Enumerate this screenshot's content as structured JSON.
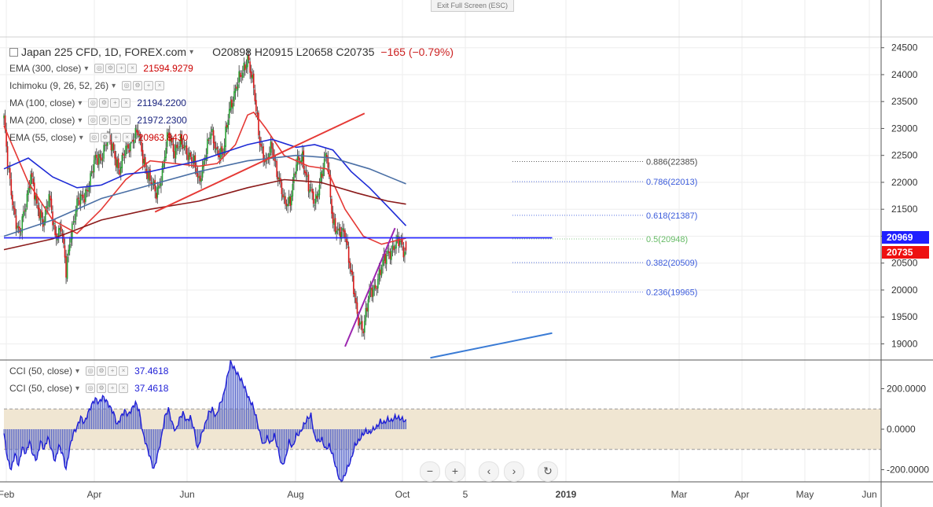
{
  "ui": {
    "exit_full_screen": "Exit Full Screen (ESC)",
    "symbol": "Japan 225 CFD, 1D, FOREX.com",
    "ohlc": "O20898  H20915  L20658  C20735",
    "change": "−165 (−0.79%)",
    "zoom_out_label": "−",
    "zoom_in_label": "+",
    "scroll_left_label": "‹",
    "scroll_right_label": "›",
    "reset_label": "↻",
    "indicators": [
      {
        "name": "EMA (300, close)",
        "value": "21594.9279",
        "color": "#cc0000"
      },
      {
        "name": "Ichimoku (9, 26, 52, 26)",
        "value": "",
        "color": "#888888"
      },
      {
        "name": "MA (100, close)",
        "value": "21194.2200",
        "color": "#1a237e"
      },
      {
        "name": "MA (200, close)",
        "value": "21972.2300",
        "color": "#1a237e"
      },
      {
        "name": "EMA (55, close)",
        "value": "20963.8430",
        "color": "#cc0000"
      }
    ],
    "cci_legends": [
      {
        "name": "CCI (50, close)",
        "value": "37.4618"
      },
      {
        "name": "CCI (50, close)",
        "value": "37.4618"
      }
    ],
    "last_price_tag": "20735",
    "line_price_tag": "20969"
  },
  "chart_data": [
    {
      "type": "candlestick",
      "symbol": "Japan 225 CFD, 1D, FOREX.com",
      "ohlc_last": {
        "open": 20898,
        "high": 20915,
        "low": 20658,
        "close": 20735
      },
      "ylim": [
        18700,
        24700
      ],
      "yticks": [
        19000,
        19500,
        20000,
        20500,
        21000,
        21500,
        22000,
        22500,
        23000,
        23500,
        24000,
        24500
      ],
      "xlabels": [
        "Feb",
        "Apr",
        "Jun",
        "Aug",
        "Oct",
        "5",
        "2019",
        "Mar",
        "Apr",
        "May",
        "Jun"
      ],
      "close_path": [
        [
          0,
          23200
        ],
        [
          3,
          22300
        ],
        [
          8,
          21500
        ],
        [
          13,
          21000
        ],
        [
          18,
          21600
        ],
        [
          22,
          22200
        ],
        [
          27,
          21500
        ],
        [
          32,
          21300
        ],
        [
          37,
          21700
        ],
        [
          42,
          21000
        ],
        [
          47,
          21200
        ],
        [
          51,
          20300
        ],
        [
          55,
          21100
        ],
        [
          60,
          21600
        ],
        [
          65,
          21700
        ],
        [
          70,
          22000
        ],
        [
          75,
          22400
        ],
        [
          80,
          22500
        ],
        [
          85,
          22800
        ],
        [
          90,
          22600
        ],
        [
          95,
          22200
        ],
        [
          100,
          22600
        ],
        [
          105,
          22800
        ],
        [
          110,
          22900
        ],
        [
          115,
          22400
        ],
        [
          120,
          22000
        ],
        [
          125,
          21800
        ],
        [
          130,
          22200
        ],
        [
          135,
          22900
        ],
        [
          140,
          22600
        ],
        [
          145,
          22700
        ],
        [
          150,
          22600
        ],
        [
          155,
          22400
        ],
        [
          160,
          22000
        ],
        [
          165,
          22500
        ],
        [
          170,
          22900
        ],
        [
          175,
          22600
        ],
        [
          180,
          22500
        ],
        [
          185,
          23400
        ],
        [
          190,
          23700
        ],
        [
          195,
          24000
        ],
        [
          200,
          24350
        ],
        [
          205,
          23700
        ],
        [
          210,
          22800
        ],
        [
          215,
          22300
        ],
        [
          220,
          22700
        ],
        [
          225,
          22100
        ],
        [
          230,
          21600
        ],
        [
          235,
          21700
        ],
        [
          240,
          22300
        ],
        [
          245,
          22500
        ],
        [
          250,
          21900
        ],
        [
          255,
          21600
        ],
        [
          260,
          22100
        ],
        [
          265,
          22500
        ],
        [
          270,
          21300
        ],
        [
          275,
          21000
        ],
        [
          280,
          21100
        ],
        [
          285,
          20300
        ],
        [
          290,
          19500
        ],
        [
          295,
          19300
        ],
        [
          300,
          19900
        ],
        [
          305,
          20100
        ],
        [
          310,
          20400
        ],
        [
          315,
          20700
        ],
        [
          320,
          20800
        ],
        [
          325,
          20900
        ],
        [
          330,
          20700
        ]
      ],
      "overlays": [
        {
          "name": "EMA (55, close)",
          "color": "#e53935",
          "points": [
            [
              0,
              23050
            ],
            [
              20,
              22000
            ],
            [
              40,
              21300
            ],
            [
              60,
              21050
            ],
            [
              80,
              21500
            ],
            [
              100,
              22050
            ],
            [
              120,
              22400
            ],
            [
              140,
              22350
            ],
            [
              160,
              22300
            ],
            [
              175,
              22350
            ],
            [
              190,
              22700
            ],
            [
              200,
              23250
            ],
            [
              205,
              23300
            ],
            [
              215,
              23000
            ],
            [
              230,
              22500
            ],
            [
              250,
              22300
            ],
            [
              265,
              22250
            ],
            [
              280,
              21500
            ],
            [
              295,
              21000
            ],
            [
              310,
              20850
            ],
            [
              330,
              20963
            ]
          ]
        },
        {
          "name": "MA (100, close)",
          "color": "#1e2bd6",
          "points": [
            [
              0,
              22250
            ],
            [
              20,
              22450
            ],
            [
              40,
              22100
            ],
            [
              60,
              21900
            ],
            [
              80,
              21950
            ],
            [
              100,
              22150
            ],
            [
              120,
              22200
            ],
            [
              140,
              22300
            ],
            [
              160,
              22400
            ],
            [
              180,
              22550
            ],
            [
              200,
              22700
            ],
            [
              220,
              22800
            ],
            [
              240,
              22650
            ],
            [
              255,
              22700
            ],
            [
              270,
              22600
            ],
            [
              285,
              22200
            ],
            [
              300,
              21900
            ],
            [
              315,
              21550
            ],
            [
              330,
              21194
            ]
          ]
        },
        {
          "name": "MA (200, close)",
          "color": "#4a6fa5",
          "points": [
            [
              0,
              21000
            ],
            [
              40,
              21300
            ],
            [
              80,
              21700
            ],
            [
              120,
              21950
            ],
            [
              160,
              22200
            ],
            [
              200,
              22400
            ],
            [
              240,
              22500
            ],
            [
              270,
              22450
            ],
            [
              300,
              22250
            ],
            [
              330,
              21972
            ]
          ]
        },
        {
          "name": "EMA (300, close)",
          "color": "#8b1a1a",
          "points": [
            [
              0,
              20750
            ],
            [
              40,
              20950
            ],
            [
              80,
              21300
            ],
            [
              120,
              21500
            ],
            [
              160,
              21650
            ],
            [
              200,
              21900
            ],
            [
              230,
              22050
            ],
            [
              260,
              22000
            ],
            [
              290,
              21800
            ],
            [
              315,
              21650
            ],
            [
              330,
              21595
            ]
          ]
        }
      ],
      "trendlines": [
        {
          "color": "#e53935",
          "from": [
            124,
            21450
          ],
          "to": [
            296,
            23280
          ]
        },
        {
          "color": "#9c27b0",
          "from": [
            280,
            18950
          ],
          "to": [
            321,
            21150
          ]
        },
        {
          "color": "#3a7bd5",
          "from": [
            350,
            18740
          ],
          "to": [
            450,
            19200
          ]
        },
        {
          "color": "#1f1fff",
          "from": [
            0,
            20969
          ],
          "to": [
            450,
            20969
          ],
          "label": "20969"
        }
      ],
      "fibonacci": [
        {
          "level": "0.886",
          "price": 22385,
          "label": "0.886(22385)",
          "color": "#4a4a4a"
        },
        {
          "level": "0.786",
          "price": 22013,
          "label": "0.786(22013)",
          "color": "#3b5bdb"
        },
        {
          "level": "0.618",
          "price": 21387,
          "label": "0.618(21387)",
          "color": "#3b5bdb"
        },
        {
          "level": "0.5",
          "price": 20948,
          "label": "0.5(20948)",
          "color": "#66bb66"
        },
        {
          "level": "0.382",
          "price": 20509,
          "label": "0.382(20509)",
          "color": "#3b5bdb"
        },
        {
          "level": "0.236",
          "price": 19965,
          "label": "0.236(19965)",
          "color": "#3b5bdb"
        }
      ],
      "last_close": 20735,
      "horizontal_line": 20969
    },
    {
      "type": "histogram+line",
      "name": "CCI (50, close)",
      "value": 37.4618,
      "ylim": [
        -260,
        330
      ],
      "yticks": [
        -200,
        0,
        200
      ],
      "ytick_labels": [
        "-200.0000",
        "0.0000",
        "200.0000"
      ],
      "band": [
        -100,
        100
      ],
      "points": [
        [
          0,
          -20
        ],
        [
          3,
          -150
        ],
        [
          6,
          -200
        ],
        [
          9,
          -120
        ],
        [
          12,
          -180
        ],
        [
          15,
          -90
        ],
        [
          18,
          -120
        ],
        [
          21,
          -60
        ],
        [
          24,
          -130
        ],
        [
          27,
          -150
        ],
        [
          30,
          -60
        ],
        [
          33,
          -100
        ],
        [
          36,
          -40
        ],
        [
          39,
          -100
        ],
        [
          42,
          -160
        ],
        [
          45,
          -80
        ],
        [
          48,
          -120
        ],
        [
          51,
          -200
        ],
        [
          54,
          -90
        ],
        [
          57,
          -20
        ],
        [
          60,
          10
        ],
        [
          63,
          60
        ],
        [
          66,
          30
        ],
        [
          69,
          80
        ],
        [
          72,
          120
        ],
        [
          75,
          150
        ],
        [
          78,
          130
        ],
        [
          81,
          160
        ],
        [
          84,
          140
        ],
        [
          87,
          110
        ],
        [
          90,
          80
        ],
        [
          93,
          20
        ],
        [
          96,
          60
        ],
        [
          99,
          90
        ],
        [
          102,
          70
        ],
        [
          105,
          100
        ],
        [
          108,
          130
        ],
        [
          111,
          90
        ],
        [
          114,
          -20
        ],
        [
          117,
          -80
        ],
        [
          120,
          -140
        ],
        [
          123,
          -200
        ],
        [
          126,
          -130
        ],
        [
          129,
          -50
        ],
        [
          132,
          60
        ],
        [
          135,
          100
        ],
        [
          138,
          30
        ],
        [
          141,
          -10
        ],
        [
          144,
          50
        ],
        [
          147,
          80
        ],
        [
          150,
          40
        ],
        [
          153,
          60
        ],
        [
          156,
          0
        ],
        [
          159,
          -100
        ],
        [
          162,
          -30
        ],
        [
          165,
          20
        ],
        [
          168,
          80
        ],
        [
          171,
          100
        ],
        [
          174,
          60
        ],
        [
          177,
          120
        ],
        [
          180,
          160
        ],
        [
          183,
          250
        ],
        [
          186,
          330
        ],
        [
          189,
          300
        ],
        [
          192,
          270
        ],
        [
          195,
          240
        ],
        [
          198,
          200
        ],
        [
          201,
          150
        ],
        [
          204,
          120
        ],
        [
          207,
          60
        ],
        [
          210,
          -20
        ],
        [
          213,
          -80
        ],
        [
          216,
          -40
        ],
        [
          219,
          -70
        ],
        [
          222,
          -30
        ],
        [
          225,
          -100
        ],
        [
          228,
          -180
        ],
        [
          231,
          -150
        ],
        [
          234,
          -60
        ],
        [
          237,
          -90
        ],
        [
          240,
          -30
        ],
        [
          243,
          -20
        ],
        [
          246,
          20
        ],
        [
          249,
          50
        ],
        [
          252,
          70
        ],
        [
          255,
          -40
        ],
        [
          258,
          -60
        ],
        [
          261,
          -50
        ],
        [
          264,
          -100
        ],
        [
          267,
          -80
        ],
        [
          270,
          -130
        ],
        [
          273,
          -200
        ],
        [
          276,
          -260
        ],
        [
          279,
          -240
        ],
        [
          282,
          -190
        ],
        [
          285,
          -150
        ],
        [
          288,
          -80
        ],
        [
          291,
          -60
        ],
        [
          294,
          -30
        ],
        [
          297,
          -10
        ],
        [
          300,
          -20
        ],
        [
          303,
          0
        ],
        [
          306,
          10
        ],
        [
          309,
          40
        ],
        [
          312,
          30
        ],
        [
          315,
          50
        ],
        [
          318,
          40
        ],
        [
          321,
          60
        ],
        [
          324,
          55
        ],
        [
          327,
          50
        ],
        [
          330,
          37
        ]
      ]
    }
  ]
}
